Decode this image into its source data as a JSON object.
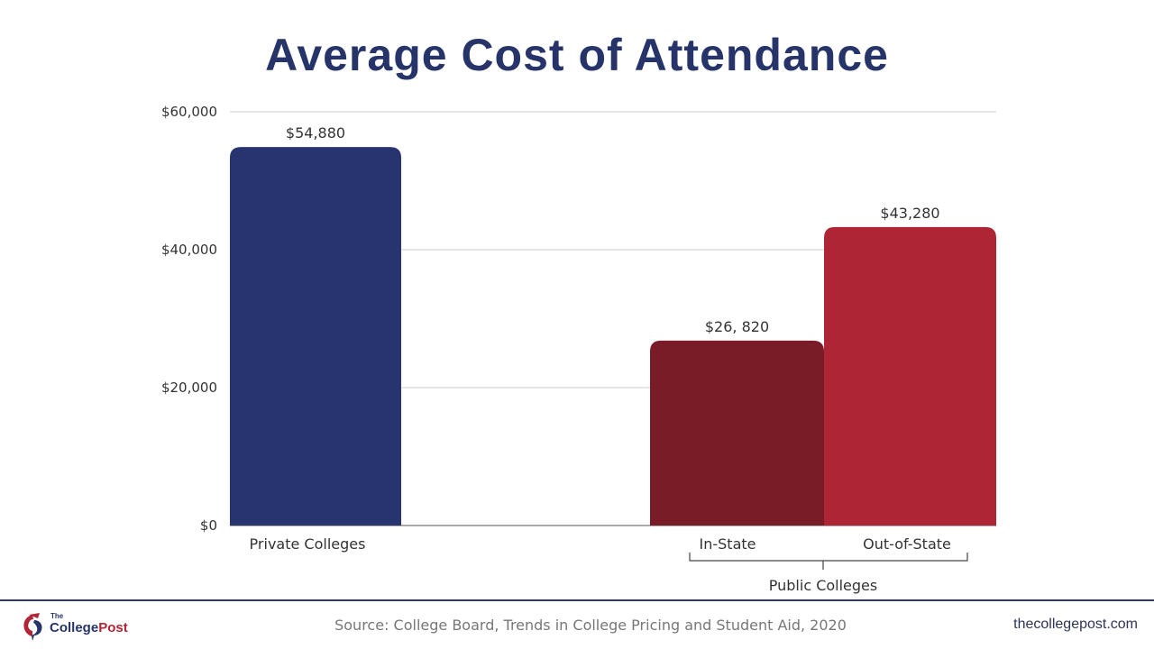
{
  "chart_data": {
    "type": "bar",
    "title": "Average Cost of Attendance",
    "xlabel": "",
    "ylabel": "",
    "ylim": [
      0,
      60000
    ],
    "yticks": [
      0,
      20000,
      40000,
      60000
    ],
    "ytick_labels": [
      "$0",
      "$20,000",
      "$40,000",
      "$60,000"
    ],
    "grid": true,
    "categories": [
      "Private Colleges",
      "In-State",
      "Out-of-State"
    ],
    "values": [
      54880,
      26820,
      43280
    ],
    "value_labels": [
      "$54,880",
      "$26, 820",
      "$43,280"
    ],
    "colors": [
      "#283470",
      "#7a1c28",
      "#ae2536"
    ],
    "group_label": "Public Colleges",
    "group_members": [
      "In-State",
      "Out-of-State"
    ]
  },
  "footer": {
    "logo_the": "The",
    "logo_college": "College",
    "logo_post": "Post",
    "source": "Source:  College Board, Trends in College Pricing and Student Aid, 2020",
    "site": "thecollegepost.com"
  }
}
